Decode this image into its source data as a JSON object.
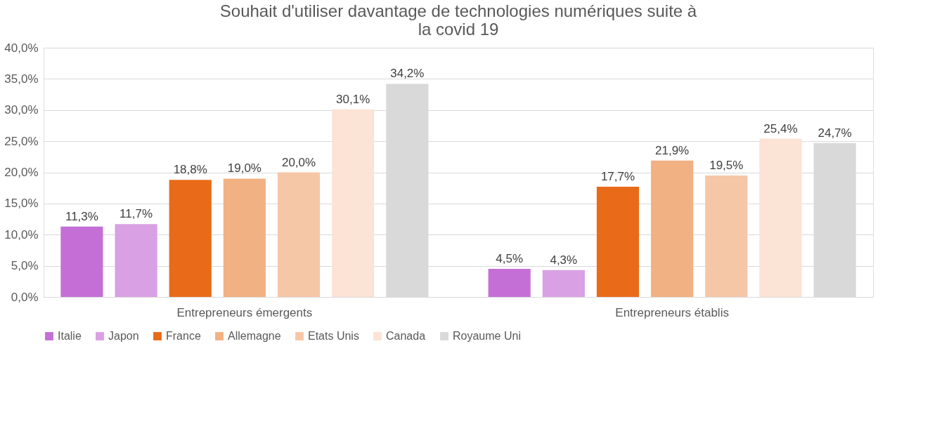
{
  "chart_data": {
    "type": "bar",
    "title": "Souhait d'utiliser davantage de technologies numériques suite à la covid 19",
    "categories": [
      "Entrepreneurs émergents",
      "Entrepreneurs établis"
    ],
    "series": [
      {
        "name": "Italie",
        "color": "#c46fd6",
        "values": [
          11.3,
          4.5
        ],
        "value_labels": [
          "11,3%",
          "4,5%"
        ]
      },
      {
        "name": "Japon",
        "color": "#d9a0e3",
        "values": [
          11.7,
          4.3
        ],
        "value_labels": [
          "11,7%",
          "4,3%"
        ]
      },
      {
        "name": "France",
        "color": "#e96b19",
        "values": [
          18.8,
          17.7
        ],
        "value_labels": [
          "18,8%",
          "17,7%"
        ]
      },
      {
        "name": "Allemagne",
        "color": "#f2b183",
        "values": [
          19.0,
          21.9
        ],
        "value_labels": [
          "19,0%",
          "21,9%"
        ]
      },
      {
        "name": "Etats Unis",
        "color": "#f6c7a6",
        "values": [
          20.0,
          19.5
        ],
        "value_labels": [
          "20,0%",
          "19,5%"
        ]
      },
      {
        "name": "Canada",
        "color": "#fbe3d6",
        "values": [
          30.1,
          25.4
        ],
        "value_labels": [
          "30,1%",
          "25,4%"
        ]
      },
      {
        "name": "Royaume Uni",
        "color": "#d9d9d9",
        "values": [
          34.2,
          24.7
        ],
        "value_labels": [
          "34,2%",
          "24,7%"
        ]
      }
    ],
    "ylim": [
      0,
      40
    ],
    "yticks": [
      {
        "value": 0,
        "label": "0,0%"
      },
      {
        "value": 5,
        "label": "5,0%"
      },
      {
        "value": 10,
        "label": "10,0%"
      },
      {
        "value": 15,
        "label": "15,0%"
      },
      {
        "value": 20,
        "label": "20,0%"
      },
      {
        "value": 25,
        "label": "25,0%"
      },
      {
        "value": 30,
        "label": "30,0%"
      },
      {
        "value": 35,
        "label": "35,0%"
      },
      {
        "value": 40,
        "label": "40,0%"
      }
    ],
    "grid": "y",
    "legend": "bottom"
  }
}
